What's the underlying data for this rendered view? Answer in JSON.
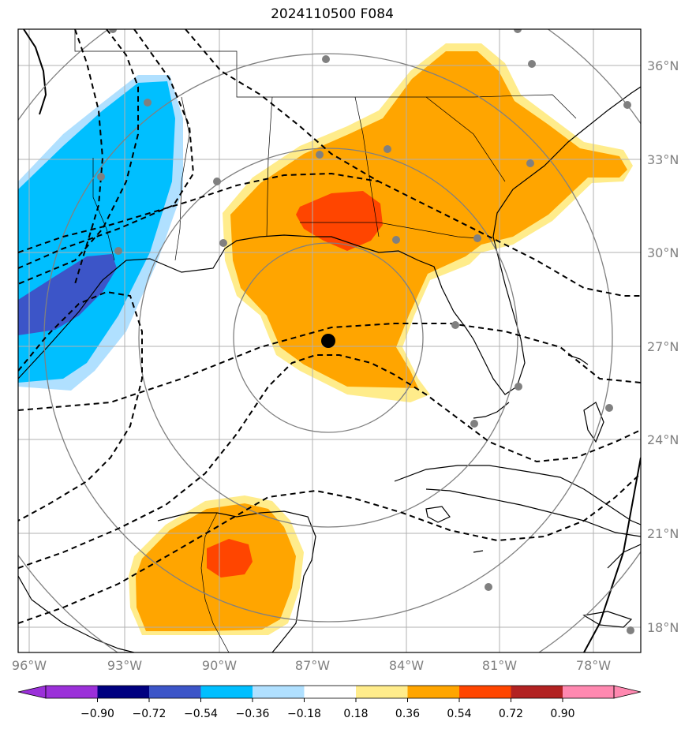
{
  "title": "2024110500 F084",
  "colors": {
    "purple": "#9b30d9",
    "navy": "#000080",
    "royalblue": "#3c55c8",
    "deepskyblue": "#00bfff",
    "lightblue": "#b0e0ff",
    "white": "#ffffff",
    "yellow": "#ffec8b",
    "orange": "#ffa500",
    "orangered": "#ff4500",
    "firebrick": "#b22222",
    "pink": "#ff88b0",
    "gridline": "#b0b0b0",
    "ring": "#808080",
    "station": "#808080"
  },
  "lat_labels": [
    "36°N",
    "33°N",
    "30°N",
    "27°N",
    "24°N",
    "21°N",
    "18°N"
  ],
  "lon_labels": [
    "96°W",
    "93°W",
    "90°W",
    "87°W",
    "84°W",
    "81°W",
    "78°W"
  ],
  "colorbar": {
    "ticks": [
      "−0.90",
      "−0.72",
      "−0.54",
      "−0.36",
      "−0.18",
      "0.18",
      "0.36",
      "0.54",
      "0.72",
      "0.90"
    ],
    "extend": "both"
  },
  "storm_center": {
    "lat": 27.2,
    "lon": -86.4
  },
  "range_rings": "concentric circles around storm center",
  "station_count": 22
}
